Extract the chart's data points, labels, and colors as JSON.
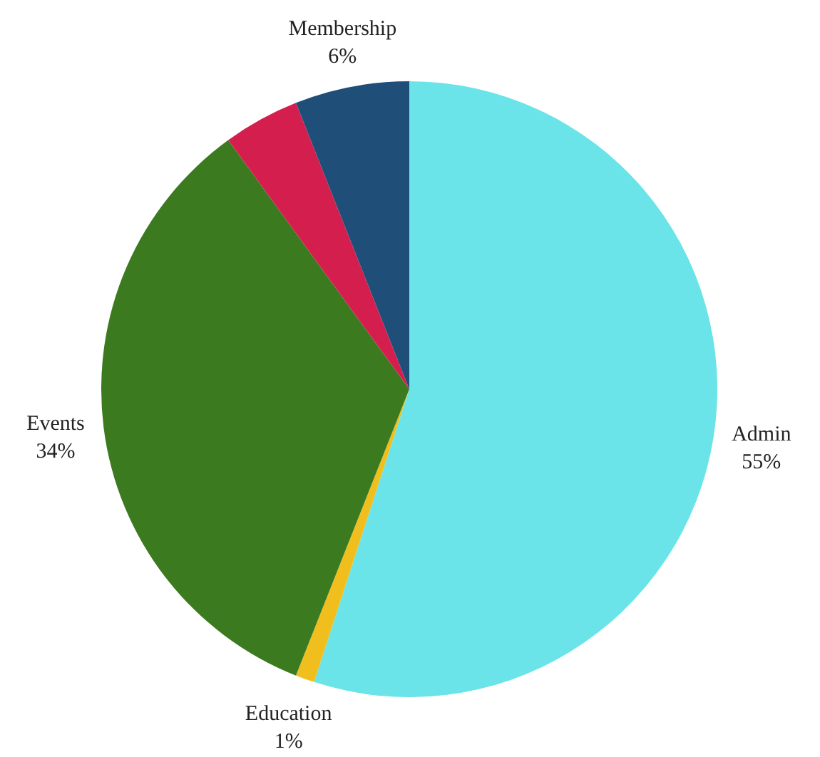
{
  "chart_data": {
    "type": "pie",
    "categories": [
      "Admin",
      "Education",
      "Events",
      null,
      "Membership"
    ],
    "values": [
      55,
      1,
      34,
      4,
      6
    ],
    "colors": [
      "#6ae4e8",
      "#f0bf1e",
      "#3b7a1e",
      "#d41f4e",
      "#1f4e78"
    ],
    "value_labels": [
      "55%",
      "1%",
      "34%",
      null,
      "6%"
    ]
  }
}
